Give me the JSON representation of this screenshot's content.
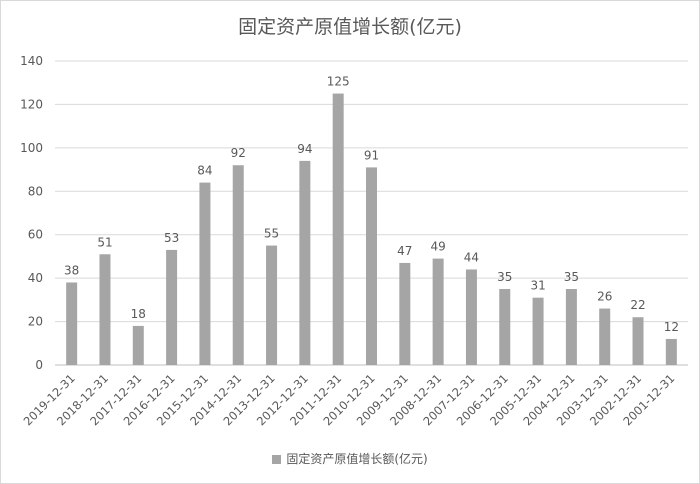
{
  "chart_data": {
    "type": "bar",
    "title": "固定资产原值增长额(亿元)",
    "categories": [
      "2019-12-31",
      "2018-12-31",
      "2017-12-31",
      "2016-12-31",
      "2015-12-31",
      "2014-12-31",
      "2013-12-31",
      "2012-12-31",
      "2011-12-31",
      "2010-12-31",
      "2009-12-31",
      "2008-12-31",
      "2007-12-31",
      "2006-12-31",
      "2005-12-31",
      "2004-12-31",
      "2003-12-31",
      "2002-12-31",
      "2001-12-31"
    ],
    "series": [
      {
        "name": "固定资产原值增长额(亿元)",
        "values": [
          38,
          51,
          18,
          53,
          84,
          92,
          55,
          94,
          125,
          91,
          47,
          49,
          44,
          35,
          31,
          35,
          26,
          22,
          12
        ],
        "color": "#a5a5a5"
      }
    ],
    "data_labels": [
      "38",
      "51",
      "18",
      "53",
      "84",
      "92",
      "55",
      "94",
      "125",
      "91",
      "47",
      "49",
      "44",
      "35",
      "31",
      "35",
      "26",
      "22",
      "12"
    ],
    "y_ticks": [
      "0",
      "20",
      "40",
      "60",
      "80",
      "100",
      "120",
      "140"
    ],
    "ylim": [
      0,
      140
    ],
    "xlabel": "",
    "ylabel": "",
    "grid": true,
    "legend": "bottom",
    "colors": {
      "bar": "#a5a5a5",
      "grid": "#d9d9d9",
      "text": "#595959"
    }
  }
}
